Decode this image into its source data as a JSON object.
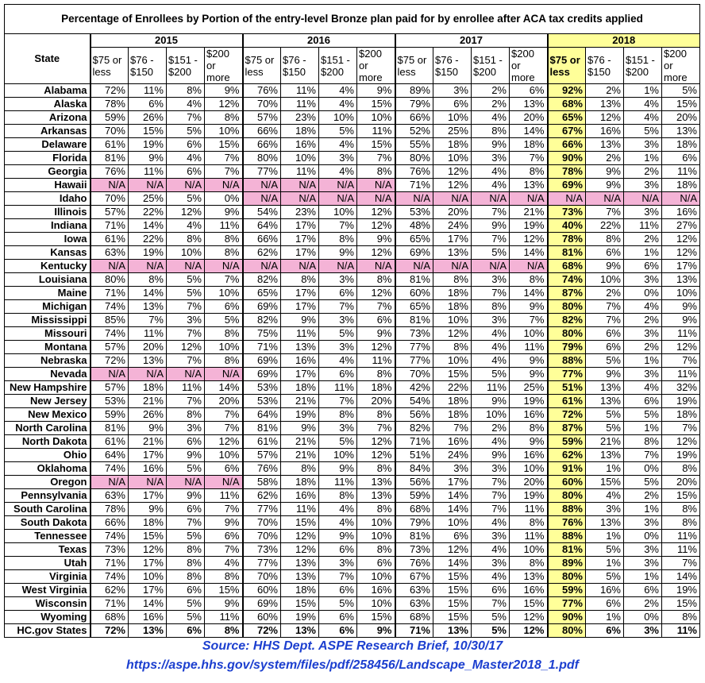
{
  "table": {
    "title": "Percentage of Enrollees by Portion of the entry-level Bronze plan paid for by enrollee after ACA tax credits applied",
    "state_header": "State",
    "years": [
      "2015",
      "2016",
      "2017",
      "2018"
    ],
    "subheaders": [
      "$75 or less",
      "$76 - $150",
      "$151 - $200",
      "$200 or more"
    ],
    "rows": [
      [
        "Alabama",
        "72%",
        "11%",
        "8%",
        "9%",
        "76%",
        "11%",
        "4%",
        "9%",
        "89%",
        "3%",
        "2%",
        "6%",
        "92%",
        "2%",
        "1%",
        "5%"
      ],
      [
        "Alaska",
        "78%",
        "6%",
        "4%",
        "12%",
        "70%",
        "11%",
        "4%",
        "15%",
        "79%",
        "6%",
        "2%",
        "13%",
        "68%",
        "13%",
        "4%",
        "15%"
      ],
      [
        "Arizona",
        "59%",
        "26%",
        "7%",
        "8%",
        "57%",
        "23%",
        "10%",
        "10%",
        "66%",
        "10%",
        "4%",
        "20%",
        "65%",
        "12%",
        "4%",
        "20%"
      ],
      [
        "Arkansas",
        "70%",
        "15%",
        "5%",
        "10%",
        "66%",
        "18%",
        "5%",
        "11%",
        "52%",
        "25%",
        "8%",
        "14%",
        "67%",
        "16%",
        "5%",
        "13%"
      ],
      [
        "Delaware",
        "61%",
        "19%",
        "6%",
        "15%",
        "66%",
        "16%",
        "4%",
        "15%",
        "55%",
        "18%",
        "9%",
        "18%",
        "66%",
        "13%",
        "3%",
        "18%"
      ],
      [
        "Florida",
        "81%",
        "9%",
        "4%",
        "7%",
        "80%",
        "10%",
        "3%",
        "7%",
        "80%",
        "10%",
        "3%",
        "7%",
        "90%",
        "2%",
        "1%",
        "6%"
      ],
      [
        "Georgia",
        "76%",
        "11%",
        "6%",
        "7%",
        "77%",
        "11%",
        "4%",
        "8%",
        "76%",
        "12%",
        "4%",
        "8%",
        "78%",
        "9%",
        "2%",
        "11%"
      ],
      [
        "Hawaii",
        "N/A",
        "N/A",
        "N/A",
        "N/A",
        "N/A",
        "N/A",
        "N/A",
        "N/A",
        "71%",
        "12%",
        "4%",
        "13%",
        "69%",
        "9%",
        "3%",
        "18%"
      ],
      [
        "Idaho",
        "70%",
        "25%",
        "5%",
        "0%",
        "N/A",
        "N/A",
        "N/A",
        "N/A",
        "N/A",
        "N/A",
        "N/A",
        "N/A",
        "N/A",
        "N/A",
        "N/A",
        "N/A"
      ],
      [
        "Illinois",
        "57%",
        "22%",
        "12%",
        "9%",
        "54%",
        "23%",
        "10%",
        "12%",
        "53%",
        "20%",
        "7%",
        "21%",
        "73%",
        "7%",
        "3%",
        "16%"
      ],
      [
        "Indiana",
        "71%",
        "14%",
        "4%",
        "11%",
        "64%",
        "17%",
        "7%",
        "12%",
        "48%",
        "24%",
        "9%",
        "19%",
        "40%",
        "22%",
        "11%",
        "27%"
      ],
      [
        "Iowa",
        "61%",
        "22%",
        "8%",
        "8%",
        "66%",
        "17%",
        "8%",
        "9%",
        "65%",
        "17%",
        "7%",
        "12%",
        "78%",
        "8%",
        "2%",
        "12%"
      ],
      [
        "Kansas",
        "63%",
        "19%",
        "10%",
        "8%",
        "62%",
        "17%",
        "9%",
        "12%",
        "69%",
        "13%",
        "5%",
        "14%",
        "81%",
        "6%",
        "1%",
        "12%"
      ],
      [
        "Kentucky",
        "N/A",
        "N/A",
        "N/A",
        "N/A",
        "N/A",
        "N/A",
        "N/A",
        "N/A",
        "N/A",
        "N/A",
        "N/A",
        "N/A",
        "68%",
        "9%",
        "6%",
        "17%"
      ],
      [
        "Louisiana",
        "80%",
        "8%",
        "5%",
        "7%",
        "82%",
        "8%",
        "3%",
        "8%",
        "81%",
        "8%",
        "3%",
        "8%",
        "74%",
        "10%",
        "3%",
        "13%"
      ],
      [
        "Maine",
        "71%",
        "14%",
        "5%",
        "10%",
        "65%",
        "17%",
        "6%",
        "12%",
        "60%",
        "18%",
        "7%",
        "14%",
        "87%",
        "2%",
        "0%",
        "10%"
      ],
      [
        "Michigan",
        "74%",
        "13%",
        "7%",
        "6%",
        "69%",
        "17%",
        "7%",
        "7%",
        "65%",
        "18%",
        "8%",
        "9%",
        "80%",
        "7%",
        "4%",
        "9%"
      ],
      [
        "Mississippi",
        "85%",
        "7%",
        "3%",
        "5%",
        "82%",
        "9%",
        "3%",
        "6%",
        "81%",
        "10%",
        "3%",
        "7%",
        "82%",
        "7%",
        "2%",
        "9%"
      ],
      [
        "Missouri",
        "74%",
        "11%",
        "7%",
        "8%",
        "75%",
        "11%",
        "5%",
        "9%",
        "73%",
        "12%",
        "4%",
        "10%",
        "80%",
        "6%",
        "3%",
        "11%"
      ],
      [
        "Montana",
        "57%",
        "20%",
        "12%",
        "10%",
        "71%",
        "13%",
        "3%",
        "12%",
        "77%",
        "8%",
        "4%",
        "11%",
        "79%",
        "6%",
        "2%",
        "12%"
      ],
      [
        "Nebraska",
        "72%",
        "13%",
        "7%",
        "8%",
        "69%",
        "16%",
        "4%",
        "11%",
        "77%",
        "10%",
        "4%",
        "9%",
        "88%",
        "5%",
        "1%",
        "7%"
      ],
      [
        "Nevada",
        "N/A",
        "N/A",
        "N/A",
        "N/A",
        "69%",
        "17%",
        "6%",
        "8%",
        "70%",
        "15%",
        "5%",
        "9%",
        "77%",
        "9%",
        "3%",
        "11%"
      ],
      [
        "New Hampshire",
        "57%",
        "18%",
        "11%",
        "14%",
        "53%",
        "18%",
        "11%",
        "18%",
        "42%",
        "22%",
        "11%",
        "25%",
        "51%",
        "13%",
        "4%",
        "32%"
      ],
      [
        "New Jersey",
        "53%",
        "21%",
        "7%",
        "20%",
        "53%",
        "21%",
        "7%",
        "20%",
        "54%",
        "18%",
        "9%",
        "19%",
        "61%",
        "13%",
        "6%",
        "19%"
      ],
      [
        "New Mexico",
        "59%",
        "26%",
        "8%",
        "7%",
        "64%",
        "19%",
        "8%",
        "8%",
        "56%",
        "18%",
        "10%",
        "16%",
        "72%",
        "5%",
        "5%",
        "18%"
      ],
      [
        "North Carolina",
        "81%",
        "9%",
        "3%",
        "7%",
        "81%",
        "9%",
        "3%",
        "7%",
        "82%",
        "7%",
        "2%",
        "8%",
        "87%",
        "5%",
        "1%",
        "7%"
      ],
      [
        "North Dakota",
        "61%",
        "21%",
        "6%",
        "12%",
        "61%",
        "21%",
        "5%",
        "12%",
        "71%",
        "16%",
        "4%",
        "9%",
        "59%",
        "21%",
        "8%",
        "12%"
      ],
      [
        "Ohio",
        "64%",
        "17%",
        "9%",
        "10%",
        "57%",
        "21%",
        "10%",
        "12%",
        "51%",
        "24%",
        "9%",
        "16%",
        "62%",
        "13%",
        "7%",
        "19%"
      ],
      [
        "Oklahoma",
        "74%",
        "16%",
        "5%",
        "6%",
        "76%",
        "8%",
        "9%",
        "8%",
        "84%",
        "3%",
        "3%",
        "10%",
        "91%",
        "1%",
        "0%",
        "8%"
      ],
      [
        "Oregon",
        "N/A",
        "N/A",
        "N/A",
        "N/A",
        "58%",
        "18%",
        "11%",
        "13%",
        "56%",
        "17%",
        "7%",
        "20%",
        "60%",
        "15%",
        "5%",
        "20%"
      ],
      [
        "Pennsylvania",
        "63%",
        "17%",
        "9%",
        "11%",
        "62%",
        "16%",
        "8%",
        "13%",
        "59%",
        "14%",
        "7%",
        "19%",
        "80%",
        "4%",
        "2%",
        "15%"
      ],
      [
        "South Carolina",
        "78%",
        "9%",
        "6%",
        "7%",
        "77%",
        "11%",
        "4%",
        "8%",
        "68%",
        "14%",
        "7%",
        "11%",
        "88%",
        "3%",
        "1%",
        "8%"
      ],
      [
        "South Dakota",
        "66%",
        "18%",
        "7%",
        "9%",
        "70%",
        "15%",
        "4%",
        "10%",
        "79%",
        "10%",
        "4%",
        "8%",
        "76%",
        "13%",
        "3%",
        "8%"
      ],
      [
        "Tennessee",
        "74%",
        "15%",
        "5%",
        "6%",
        "70%",
        "12%",
        "9%",
        "10%",
        "81%",
        "6%",
        "3%",
        "11%",
        "88%",
        "1%",
        "0%",
        "11%"
      ],
      [
        "Texas",
        "73%",
        "12%",
        "8%",
        "7%",
        "73%",
        "12%",
        "6%",
        "8%",
        "73%",
        "12%",
        "4%",
        "10%",
        "81%",
        "5%",
        "3%",
        "11%"
      ],
      [
        "Utah",
        "71%",
        "17%",
        "8%",
        "4%",
        "77%",
        "13%",
        "3%",
        "6%",
        "76%",
        "14%",
        "3%",
        "8%",
        "89%",
        "1%",
        "3%",
        "7%"
      ],
      [
        "Virginia",
        "74%",
        "10%",
        "8%",
        "8%",
        "70%",
        "13%",
        "7%",
        "10%",
        "67%",
        "15%",
        "4%",
        "13%",
        "80%",
        "5%",
        "1%",
        "14%"
      ],
      [
        "West Virginia",
        "62%",
        "17%",
        "6%",
        "15%",
        "60%",
        "18%",
        "6%",
        "16%",
        "63%",
        "15%",
        "6%",
        "16%",
        "59%",
        "16%",
        "6%",
        "19%"
      ],
      [
        "Wisconsin",
        "71%",
        "14%",
        "5%",
        "9%",
        "69%",
        "15%",
        "5%",
        "10%",
        "63%",
        "15%",
        "7%",
        "15%",
        "77%",
        "6%",
        "2%",
        "15%"
      ],
      [
        "Wyoming",
        "68%",
        "16%",
        "5%",
        "11%",
        "60%",
        "19%",
        "6%",
        "15%",
        "68%",
        "15%",
        "5%",
        "12%",
        "90%",
        "1%",
        "0%",
        "8%"
      ]
    ],
    "total": [
      "HC.gov States",
      "72%",
      "13%",
      "6%",
      "8%",
      "72%",
      "13%",
      "6%",
      "9%",
      "71%",
      "13%",
      "5%",
      "12%",
      "80%",
      "6%",
      "3%",
      "11%"
    ]
  },
  "source": {
    "line1": "Source: HHS Dept. ASPE Research Brief, 10/30/17",
    "line2": "https://aspe.hhs.gov/system/files/pdf/258456/Landscape_Master2018_1.pdf"
  }
}
